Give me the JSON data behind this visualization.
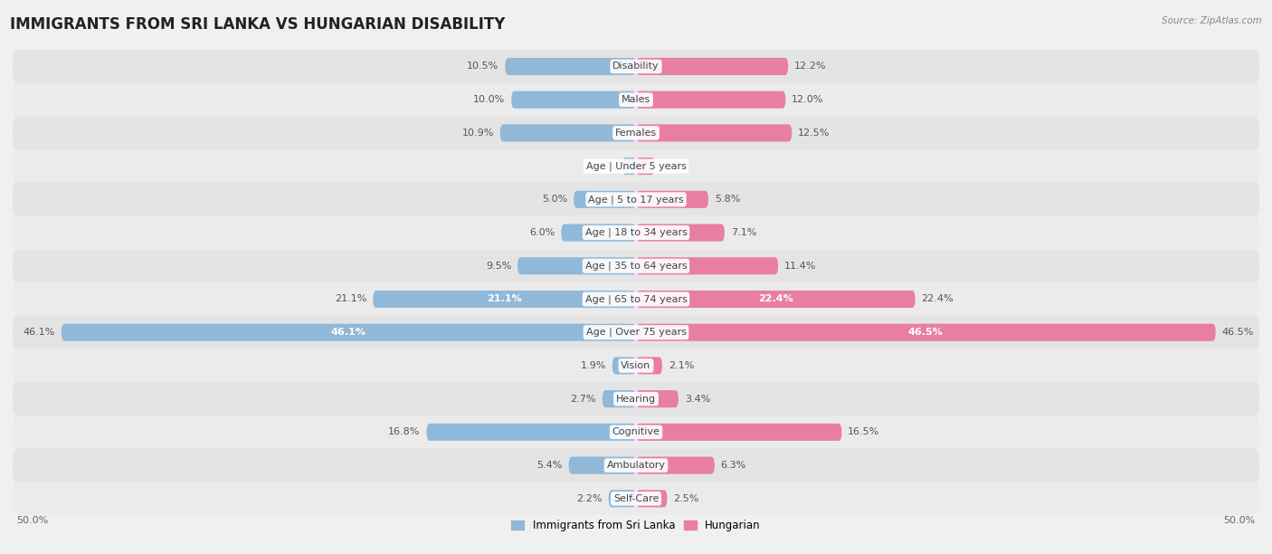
{
  "title": "IMMIGRANTS FROM SRI LANKA VS HUNGARIAN DISABILITY",
  "source": "Source: ZipAtlas.com",
  "categories": [
    "Disability",
    "Males",
    "Females",
    "Age | Under 5 years",
    "Age | 5 to 17 years",
    "Age | 18 to 34 years",
    "Age | 35 to 64 years",
    "Age | 65 to 74 years",
    "Age | Over 75 years",
    "Vision",
    "Hearing",
    "Cognitive",
    "Ambulatory",
    "Self-Care"
  ],
  "left_values": [
    10.5,
    10.0,
    10.9,
    1.1,
    5.0,
    6.0,
    9.5,
    21.1,
    46.1,
    1.9,
    2.7,
    16.8,
    5.4,
    2.2
  ],
  "right_values": [
    12.2,
    12.0,
    12.5,
    1.5,
    5.8,
    7.1,
    11.4,
    22.4,
    46.5,
    2.1,
    3.4,
    16.5,
    6.3,
    2.5
  ],
  "left_color": "#90b8d8",
  "right_color": "#e87fa0",
  "left_label": "Immigrants from Sri Lanka",
  "right_label": "Hungarian",
  "bg_color": "#f0f0f0",
  "row_color_even": "#e4e4e4",
  "row_color_odd": "#ebebeb",
  "axis_max": 50.0,
  "title_fontsize": 12,
  "value_fontsize": 8,
  "category_fontsize": 8
}
